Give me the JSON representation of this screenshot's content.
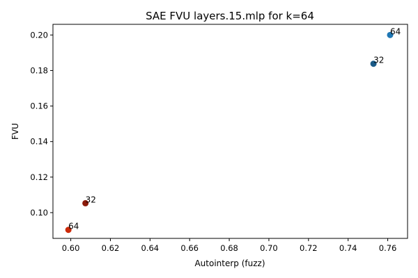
{
  "chart_data": {
    "type": "scatter",
    "title": "SAE FVU layers.15.mlp for k=64",
    "xlabel": "Autointerp (fuzz)",
    "ylabel": "FVU",
    "xlim": [
      0.591,
      0.77
    ],
    "ylim": [
      0.0855,
      0.206
    ],
    "xticks": [
      0.6,
      0.62,
      0.64,
      0.66,
      0.68,
      0.7,
      0.72,
      0.74,
      0.76
    ],
    "xtick_labels": [
      "0.60",
      "0.62",
      "0.64",
      "0.66",
      "0.68",
      "0.70",
      "0.72",
      "0.74",
      "0.76"
    ],
    "yticks": [
      0.1,
      0.12,
      0.14,
      0.16,
      0.18,
      0.2
    ],
    "ytick_labels": [
      "0.10",
      "0.12",
      "0.14",
      "0.16",
      "0.18",
      "0.20"
    ],
    "grid": false,
    "points": [
      {
        "x": 0.7612,
        "y": 0.2,
        "label": "64",
        "color": "#1f77b4"
      },
      {
        "x": 0.7528,
        "y": 0.1838,
        "label": "32",
        "color": "#1a5a87"
      },
      {
        "x": 0.6074,
        "y": 0.1053,
        "label": "32",
        "color": "#8b1a0a"
      },
      {
        "x": 0.5988,
        "y": 0.0903,
        "label": "64",
        "color": "#cc2a0a"
      }
    ]
  }
}
